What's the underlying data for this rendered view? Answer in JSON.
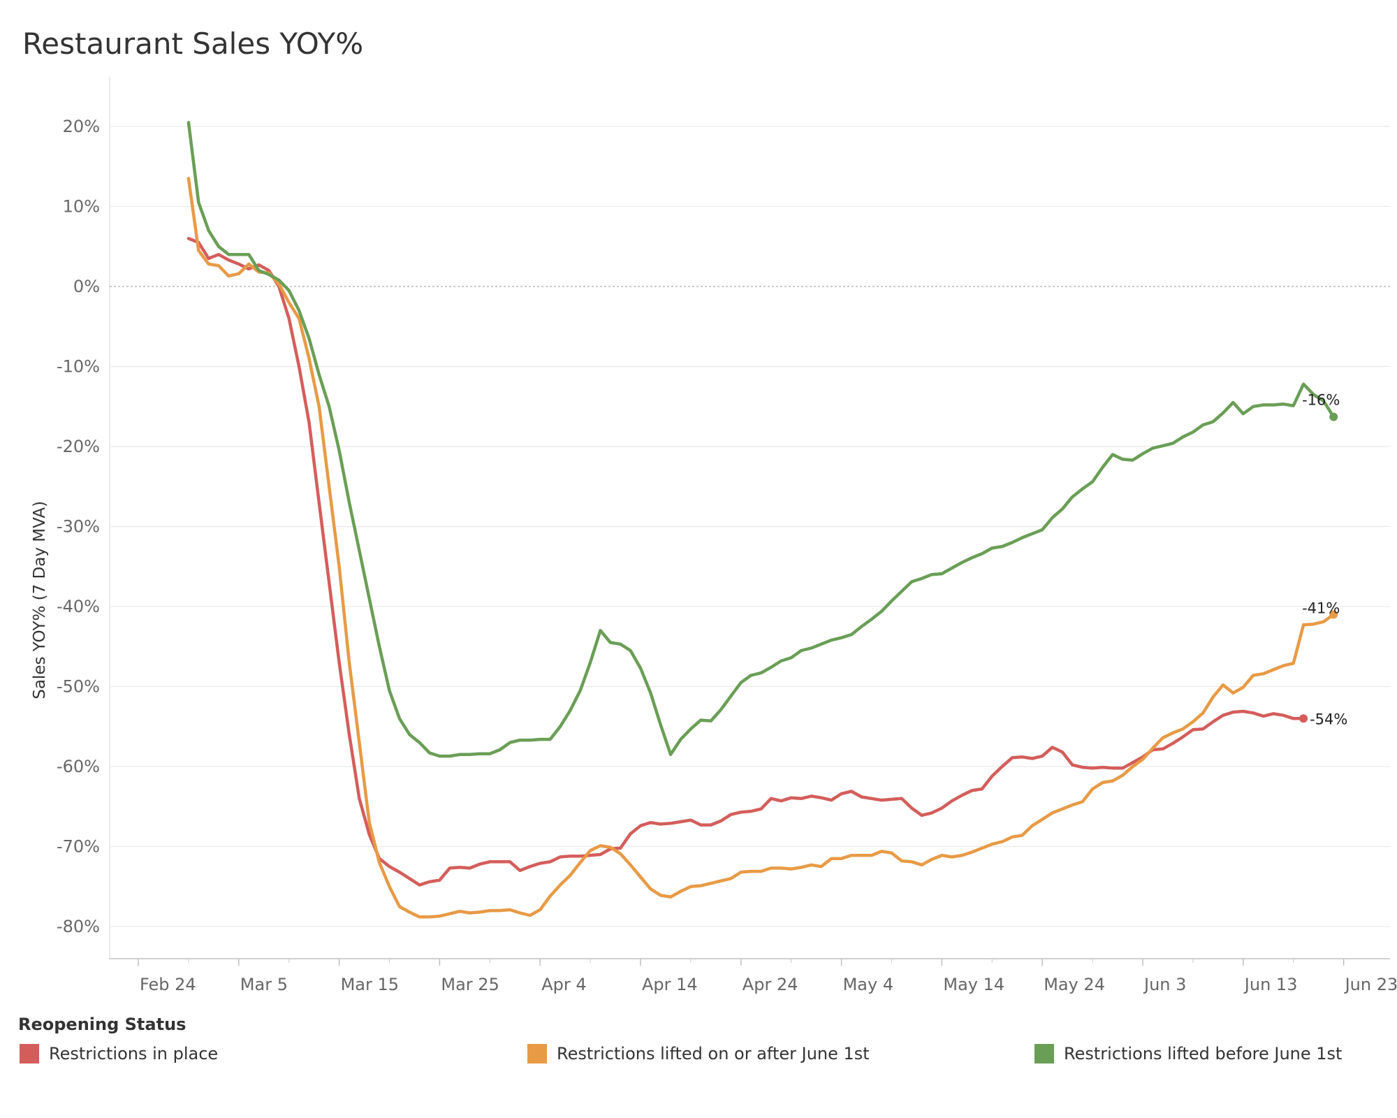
{
  "title": "Restaurant Sales YOY%",
  "colors": {
    "red": "#d45d5b",
    "orange": "#e89a45",
    "green": "#6a9e56",
    "grid": "#eaeaea",
    "zero": "#aaaaaa",
    "axisText": "#666666"
  },
  "chart_data": {
    "type": "line",
    "ylabel": "Sales YOY% (7 Day MVA)",
    "xlabel": "",
    "ylim": [
      -85,
      25
    ],
    "yticks": [
      20,
      10,
      0,
      -10,
      -20,
      -30,
      -40,
      -50,
      -60,
      -70,
      -80
    ],
    "ytick_labels": [
      "20%",
      "10%",
      "0%",
      "-10%",
      "-20%",
      "-30%",
      "-40%",
      "-50%",
      "-60%",
      "-70%",
      "-80%"
    ],
    "xlim": [
      "2020-02-21",
      "2020-06-27"
    ],
    "xticks": [
      "2020-02-24",
      "2020-03-05",
      "2020-03-15",
      "2020-03-25",
      "2020-04-04",
      "2020-04-14",
      "2020-04-24",
      "2020-05-04",
      "2020-05-14",
      "2020-05-24",
      "2020-06-03",
      "2020-06-13",
      "2020-06-23"
    ],
    "xtick_labels": [
      "Feb 24",
      "Mar 5",
      "Mar 15",
      "Mar 25",
      "Apr 4",
      "Apr 14",
      "Apr 24",
      "May 4",
      "May 14",
      "May 24",
      "Jun 3",
      "Jun 13",
      "Jun 23"
    ],
    "x_start": "2020-02-29",
    "x_step_days": 1,
    "grid": true,
    "legend": {
      "title": "Reopening Status",
      "placement": "bottom"
    },
    "series": [
      {
        "name": "Restrictions in place",
        "color": "#d45d5b",
        "end_label": "-54%",
        "values": [
          6,
          5.5,
          3.5,
          4,
          3.3,
          2.8,
          2.2,
          2.7,
          2,
          0,
          -4,
          -10,
          -17,
          -27,
          -37,
          -47,
          -56,
          -64,
          -68.5,
          -71.5,
          -72.5,
          -73.2,
          -74,
          -74.8,
          -74.4,
          -74.2,
          -72.7,
          -72.6,
          -72.7,
          -72.2,
          -71.9,
          -71.9,
          -71.9,
          -73,
          -72.5,
          -72.1,
          -71.9,
          -71.3,
          -71.2,
          -71.2,
          -71.1,
          -71,
          -70.3,
          -70.2,
          -68.4,
          -67.4,
          -67,
          -67.2,
          -67.1,
          -66.9,
          -66.7,
          -67.3,
          -67.3,
          -66.8,
          -66,
          -65.7,
          -65.6,
          -65.3,
          -64,
          -64.3,
          -63.9,
          -64,
          -63.7,
          -63.9,
          -64.2,
          -63.4,
          -63.1,
          -63.8,
          -64,
          -64.2,
          -64.1,
          -64,
          -65.2,
          -66.1,
          -65.8,
          -65.2,
          -64.3,
          -63.6,
          -63,
          -62.8,
          -61.2,
          -60,
          -58.9,
          -58.8,
          -59,
          -58.7,
          -57.6,
          -58.2,
          -59.8,
          -60.1,
          -60.2,
          -60.1,
          -60.2,
          -60.2,
          -59.5,
          -58.8,
          -57.9,
          -57.8,
          -57.1,
          -56.3,
          -55.4,
          -55.3,
          -54.4,
          -53.6,
          -53.2,
          -53.1,
          -53.3,
          -53.7,
          -53.4,
          -53.6,
          -54,
          -54
        ]
      },
      {
        "name": "Restrictions lifted on or after June 1st",
        "color": "#e89a45",
        "end_label": "-41%",
        "values": [
          13.5,
          4.5,
          2.8,
          2.6,
          1.3,
          1.6,
          2.8,
          1.8,
          1.7,
          0.3,
          -2,
          -4,
          -9,
          -15,
          -25,
          -35,
          -47,
          -57,
          -67,
          -72,
          -75,
          -77.5,
          -78.2,
          -78.8,
          -78.8,
          -78.7,
          -78.4,
          -78.1,
          -78.3,
          -78.2,
          -78,
          -78,
          -77.9,
          -78.3,
          -78.6,
          -77.9,
          -76.2,
          -74.8,
          -73.6,
          -72,
          -70.5,
          -69.9,
          -70.1,
          -70.9,
          -72.3,
          -73.8,
          -75.3,
          -76.1,
          -76.3,
          -75.6,
          -75,
          -74.9,
          -74.6,
          -74.3,
          -74,
          -73.2,
          -73.1,
          -73.1,
          -72.7,
          -72.7,
          -72.8,
          -72.6,
          -72.3,
          -72.5,
          -71.5,
          -71.5,
          -71.1,
          -71.1,
          -71.1,
          -70.6,
          -70.8,
          -71.8,
          -71.9,
          -72.3,
          -71.6,
          -71.1,
          -71.3,
          -71.1,
          -70.7,
          -70.2,
          -69.7,
          -69.4,
          -68.8,
          -68.6,
          -67.4,
          -66.6,
          -65.8,
          -65.3,
          -64.8,
          -64.4,
          -62.8,
          -62,
          -61.8,
          -61.1,
          -60,
          -59.1,
          -57.7,
          -56.4,
          -55.8,
          -55.3,
          -54.4,
          -53.3,
          -51.3,
          -49.8,
          -50.8,
          -50.1,
          -48.6,
          -48.4,
          -47.9,
          -47.4,
          -47.1,
          -42.3,
          -42.2,
          -41.9,
          -41
        ]
      },
      {
        "name": "Restrictions lifted before June 1st",
        "color": "#6a9e56",
        "end_label": "-16%",
        "values": [
          20.5,
          10.5,
          7,
          5,
          4,
          4,
          4,
          2,
          1.5,
          0.8,
          -0.5,
          -3,
          -6.5,
          -11,
          -15,
          -20.5,
          -27,
          -33,
          -39,
          -45,
          -50.5,
          -54,
          -56,
          -57,
          -58.3,
          -58.7,
          -58.7,
          -58.5,
          -58.5,
          -58.4,
          -58.4,
          -57.9,
          -57,
          -56.7,
          -56.7,
          -56.6,
          -56.6,
          -55,
          -53,
          -50.5,
          -47,
          -43,
          -44.5,
          -44.7,
          -45.5,
          -47.7,
          -50.8,
          -54.8,
          -58.5,
          -56.6,
          -55.3,
          -54.2,
          -54.3,
          -52.9,
          -51.2,
          -49.5,
          -48.6,
          -48.3,
          -47.6,
          -46.8,
          -46.4,
          -45.5,
          -45.2,
          -44.7,
          -44.2,
          -43.9,
          -43.5,
          -42.5,
          -41.6,
          -40.6,
          -39.3,
          -38.1,
          -36.9,
          -36.5,
          -36,
          -35.9,
          -35.2,
          -34.5,
          -33.9,
          -33.4,
          -32.7,
          -32.5,
          -32,
          -31.4,
          -30.9,
          -30.4,
          -28.9,
          -27.8,
          -26.3,
          -25.3,
          -24.4,
          -22.6,
          -21,
          -21.6,
          -21.7,
          -20.9,
          -20.2,
          -19.9,
          -19.6,
          -18.8,
          -18.2,
          -17.3,
          -16.9,
          -15.8,
          -14.5,
          -15.9,
          -15,
          -14.8,
          -14.8,
          -14.7,
          -14.9,
          -12.2,
          -13.5,
          -14.3,
          -16.3
        ]
      }
    ]
  }
}
